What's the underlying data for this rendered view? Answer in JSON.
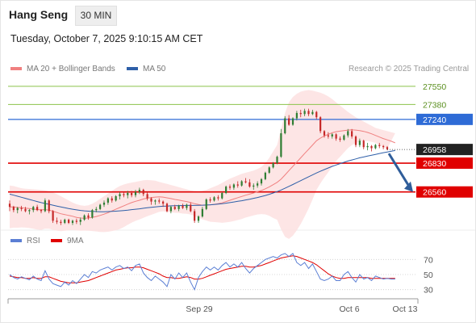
{
  "header": {
    "instrument": "Hang Seng",
    "timeframe": "30 MIN",
    "datetime": "Tuesday, October 7, 2025 9:10:15 AM CET"
  },
  "legend": {
    "ma20": {
      "label": "MA 20 + Bollinger Bands",
      "color": "#f08080"
    },
    "ma50": {
      "label": "MA 50",
      "color": "#2e5fa8"
    },
    "rsi": {
      "label": "RSI",
      "color": "#5b7fd4"
    },
    "rsi_ma": {
      "label": "9MA",
      "color": "#e00000"
    }
  },
  "copyright": "Research © 2025 Trading Central",
  "colors": {
    "up": "#2e7d32",
    "down": "#c62828",
    "resistance": "#8bc34a",
    "support": "#e00000",
    "pivot": "#2e6bd6",
    "band": "#fde2e2",
    "arrow": "#2f5d9a"
  },
  "chart_data": [
    {
      "type": "candlestick",
      "title": "Hang Seng",
      "x_ticks": [
        "Sep 29",
        "Oct 6",
        "Oct 13"
      ],
      "ylim": [
        26240,
        27640
      ],
      "current_price": 26958,
      "levels": [
        {
          "label": "27550",
          "value": 27550,
          "kind": "resistance"
        },
        {
          "label": "27380",
          "value": 27380,
          "kind": "resistance"
        },
        {
          "label": "27240",
          "value": 27240,
          "kind": "pivot"
        },
        {
          "label": "26830",
          "value": 26830,
          "kind": "support"
        },
        {
          "label": "26560",
          "value": 26560,
          "kind": "support"
        }
      ],
      "ohlc": [
        [
          26450,
          26480,
          26380,
          26420
        ],
        [
          26420,
          26430,
          26370,
          26390
        ],
        [
          26390,
          26420,
          26360,
          26410
        ],
        [
          26410,
          26430,
          26380,
          26400
        ],
        [
          26400,
          26420,
          26370,
          26380
        ],
        [
          26380,
          26400,
          26350,
          26390
        ],
        [
          26390,
          26430,
          26370,
          26420
        ],
        [
          26420,
          26440,
          26380,
          26390
        ],
        [
          26390,
          26400,
          26360,
          26380
        ],
        [
          26380,
          26500,
          26370,
          26480
        ],
        [
          26480,
          26490,
          26360,
          26380
        ],
        [
          26380,
          26390,
          26270,
          26290
        ],
        [
          26290,
          26320,
          26260,
          26280
        ],
        [
          26280,
          26300,
          26250,
          26270
        ],
        [
          26270,
          26310,
          26260,
          26300
        ],
        [
          26300,
          26310,
          26260,
          26270
        ],
        [
          26270,
          26300,
          26250,
          26290
        ],
        [
          26290,
          26310,
          26260,
          26280
        ],
        [
          26280,
          26320,
          26250,
          26300
        ],
        [
          26300,
          26350,
          26290,
          26340
        ],
        [
          26340,
          26360,
          26300,
          26320
        ],
        [
          26320,
          26400,
          26310,
          26390
        ],
        [
          26390,
          26420,
          26370,
          26400
        ],
        [
          26400,
          26450,
          26390,
          26440
        ],
        [
          26440,
          26480,
          26420,
          26460
        ],
        [
          26460,
          26510,
          26440,
          26500
        ],
        [
          26500,
          26520,
          26460,
          26480
        ],
        [
          26480,
          26530,
          26470,
          26520
        ],
        [
          26520,
          26560,
          26490,
          26540
        ],
        [
          26540,
          26560,
          26510,
          26530
        ],
        [
          26530,
          26570,
          26500,
          26550
        ],
        [
          26550,
          26570,
          26510,
          26530
        ],
        [
          26530,
          26580,
          26510,
          26560
        ],
        [
          26560,
          26600,
          26540,
          26580
        ],
        [
          26580,
          26590,
          26520,
          26540
        ],
        [
          26540,
          26560,
          26480,
          26500
        ],
        [
          26500,
          26510,
          26440,
          26470
        ],
        [
          26470,
          26490,
          26440,
          26480
        ],
        [
          26480,
          26500,
          26450,
          26470
        ],
        [
          26470,
          26480,
          26420,
          26450
        ],
        [
          26450,
          26460,
          26370,
          26380
        ],
        [
          26380,
          26430,
          26360,
          26420
        ],
        [
          26420,
          26440,
          26390,
          26400
        ],
        [
          26400,
          26440,
          26380,
          26430
        ],
        [
          26430,
          26450,
          26400,
          26410
        ],
        [
          26410,
          26450,
          26390,
          26440
        ],
        [
          26440,
          26460,
          26370,
          26380
        ],
        [
          26380,
          26400,
          26270,
          26290
        ],
        [
          26290,
          26340,
          26270,
          26330
        ],
        [
          26330,
          26420,
          26320,
          26400
        ],
        [
          26400,
          26500,
          26390,
          26490
        ],
        [
          26490,
          26510,
          26460,
          26480
        ],
        [
          26480,
          26520,
          26470,
          26510
        ],
        [
          26510,
          26530,
          26480,
          26500
        ],
        [
          26500,
          26560,
          26490,
          26550
        ],
        [
          26550,
          26620,
          26540,
          26610
        ],
        [
          26610,
          26630,
          26580,
          26600
        ],
        [
          26600,
          26640,
          26580,
          26630
        ],
        [
          26630,
          26660,
          26600,
          26620
        ],
        [
          26620,
          26670,
          26610,
          26660
        ],
        [
          26660,
          26690,
          26640,
          26650
        ],
        [
          26650,
          26680,
          26600,
          26610
        ],
        [
          26610,
          26640,
          26580,
          26620
        ],
        [
          26620,
          26660,
          26600,
          26640
        ],
        [
          26640,
          26690,
          26620,
          26680
        ],
        [
          26680,
          26750,
          26670,
          26740
        ],
        [
          26740,
          26800,
          26730,
          26790
        ],
        [
          26790,
          26840,
          26780,
          26830
        ],
        [
          26830,
          26900,
          26820,
          26890
        ],
        [
          26890,
          27150,
          26880,
          27110
        ],
        [
          27110,
          27270,
          27100,
          27250
        ],
        [
          27250,
          27280,
          27180,
          27190
        ],
        [
          27190,
          27260,
          27180,
          27250
        ],
        [
          27250,
          27320,
          27230,
          27300
        ],
        [
          27300,
          27330,
          27260,
          27290
        ],
        [
          27290,
          27340,
          27270,
          27320
        ],
        [
          27320,
          27340,
          27270,
          27290
        ],
        [
          27290,
          27330,
          27280,
          27310
        ],
        [
          27310,
          27320,
          27240,
          27260
        ],
        [
          27260,
          27270,
          27110,
          27130
        ],
        [
          27130,
          27140,
          27070,
          27090
        ],
        [
          27090,
          27120,
          27060,
          27080
        ],
        [
          27080,
          27110,
          27060,
          27100
        ],
        [
          27100,
          27110,
          27040,
          27060
        ],
        [
          27060,
          27080,
          27030,
          27050
        ],
        [
          27050,
          27100,
          27040,
          27090
        ],
        [
          27090,
          27150,
          27070,
          27130
        ],
        [
          27130,
          27150,
          27060,
          27080
        ],
        [
          27080,
          27090,
          26980,
          27000
        ],
        [
          27000,
          27060,
          26980,
          27040
        ],
        [
          27040,
          27050,
          26960,
          26980
        ],
        [
          26980,
          27020,
          26950,
          26990
        ],
        [
          26990,
          27000,
          26940,
          26970
        ],
        [
          26970,
          27010,
          26960,
          27000
        ],
        [
          27000,
          27020,
          26970,
          26990
        ],
        [
          26990,
          27000,
          26960,
          26980
        ],
        [
          26980,
          26990,
          26950,
          26960
        ]
      ],
      "ma20": [
        26420,
        26420,
        26415,
        26412,
        26408,
        26405,
        26400,
        26395,
        26392,
        26395,
        26390,
        26380,
        26368,
        26356,
        26348,
        26340,
        26332,
        26322,
        26316,
        26314,
        26316,
        26322,
        26330,
        26340,
        26352,
        26366,
        26382,
        26398,
        26414,
        26430,
        26446,
        26460,
        26472,
        26482,
        26494,
        26502,
        26508,
        26512,
        26514,
        26512,
        26505,
        26498,
        26490,
        26484,
        26476,
        26470,
        26462,
        26450,
        26442,
        26436,
        26436,
        26438,
        26444,
        26450,
        26458,
        26470,
        26482,
        26494,
        26506,
        26518,
        26530,
        26540,
        26550,
        26562,
        26574,
        26590,
        26608,
        26628,
        26650,
        26680,
        26720,
        26760,
        26800,
        26840,
        26880,
        26920,
        26960,
        27000,
        27040,
        27065,
        27085,
        27100,
        27115,
        27125,
        27130,
        27135,
        27140,
        27142,
        27140,
        27135,
        27128,
        27118,
        27105,
        27090,
        27075,
        27060,
        27048,
        27035,
        27020
      ],
      "ma50": [
        26540,
        26530,
        26520,
        26510,
        26500,
        26490,
        26480,
        26470,
        26460,
        26452,
        26444,
        26436,
        26428,
        26420,
        26412,
        26404,
        26398,
        26392,
        26387,
        26383,
        26380,
        26378,
        26376,
        26375,
        26375,
        26376,
        26378,
        26380,
        26383,
        26386,
        26390,
        26394,
        26398,
        26402,
        26407,
        26412,
        26416,
        26420,
        26423,
        26426,
        26428,
        26430,
        26431,
        26432,
        26433,
        26434,
        26434,
        26434,
        26435,
        26436,
        26438,
        26440,
        26443,
        26446,
        26450,
        26455,
        26460,
        26466,
        26472,
        26478,
        26485,
        26492,
        26500,
        26508,
        26517,
        26527,
        26538,
        26550,
        26563,
        26578,
        26595,
        26612,
        26630,
        26648,
        26666,
        26684,
        26702,
        26720,
        26738,
        26754,
        26770,
        26785,
        26800,
        26813,
        26826,
        26838,
        26850,
        26860,
        26870,
        26880,
        26888,
        26896,
        26904,
        26912,
        26920,
        26928,
        26935,
        26942,
        26948
      ],
      "bb_upper": [
        26620,
        26615,
        26605,
        26595,
        26590,
        26588,
        26585,
        26582,
        26580,
        26575,
        26565,
        26555,
        26540,
        26520,
        26500,
        26480,
        26460,
        26445,
        26435,
        26430,
        26435,
        26450,
        26470,
        26495,
        26520,
        26545,
        26570,
        26595,
        26615,
        26630,
        26640,
        26648,
        26655,
        26662,
        26670,
        26672,
        26670,
        26665,
        26655,
        26645,
        26635,
        26625,
        26615,
        26605,
        26595,
        26585,
        26575,
        26568,
        26565,
        26570,
        26580,
        26595,
        26610,
        26625,
        26645,
        26665,
        26685,
        26700,
        26715,
        26730,
        26740,
        26750,
        26760,
        26775,
        26795,
        26830,
        26880,
        26940,
        27000,
        27150,
        27300,
        27400,
        27450,
        27480,
        27500,
        27510,
        27515,
        27510,
        27500,
        27490,
        27475,
        27455,
        27430,
        27400,
        27370,
        27340,
        27310,
        27285,
        27260,
        27240,
        27220,
        27200,
        27180,
        27160,
        27150,
        27140,
        27130,
        27120,
        27110
      ],
      "bb_lower": [
        26220,
        26225,
        26225,
        26228,
        26226,
        26222,
        26215,
        26208,
        26204,
        26215,
        26215,
        26205,
        26196,
        26192,
        26196,
        26200,
        26204,
        26199,
        26197,
        26198,
        26197,
        26194,
        26190,
        26185,
        26184,
        26187,
        26194,
        26201,
        26213,
        26230,
        26252,
        26272,
        26289,
        26302,
        26318,
        26332,
        26346,
        26359,
        26373,
        26379,
        26375,
        26371,
        26365,
        26363,
        26357,
        26355,
        26349,
        26332,
        26319,
        26302,
        26292,
        26281,
        26278,
        26275,
        26271,
        26275,
        26279,
        26288,
        26297,
        26306,
        26320,
        26330,
        26340,
        26349,
        26353,
        26350,
        26336,
        26316,
        26300,
        26210,
        26140,
        26120,
        26150,
        26200,
        26260,
        26330,
        26405,
        26490,
        26580,
        26640,
        26695,
        26745,
        26800,
        26850,
        26890,
        26930,
        26970,
        26999,
        27020,
        27030,
        27036,
        27036,
        27030,
        27020,
        27000,
        26980,
        26966,
        26950,
        26930
      ],
      "forecast_arrow": {
        "from": 26920,
        "to": 26560
      }
    },
    {
      "type": "line",
      "title": "RSI",
      "y_ticks": [
        70,
        50,
        30
      ],
      "ylim": [
        20,
        80
      ],
      "rsi": [
        50,
        46,
        44,
        47,
        45,
        43,
        48,
        44,
        42,
        55,
        44,
        38,
        36,
        34,
        40,
        36,
        42,
        38,
        44,
        50,
        46,
        54,
        52,
        56,
        58,
        60,
        56,
        60,
        62,
        58,
        60,
        55,
        62,
        64,
        52,
        46,
        42,
        48,
        44,
        40,
        34,
        50,
        44,
        52,
        46,
        52,
        40,
        30,
        46,
        54,
        60,
        56,
        60,
        56,
        62,
        66,
        60,
        64,
        60,
        66,
        58,
        52,
        58,
        62,
        66,
        70,
        72,
        74,
        72,
        76,
        78,
        74,
        78,
        66,
        62,
        66,
        58,
        64,
        54,
        44,
        42,
        44,
        48,
        42,
        42,
        50,
        54,
        46,
        40,
        50,
        44,
        46,
        42,
        48,
        46,
        44,
        45,
        44,
        44
      ],
      "rsi_ma": [
        48,
        47,
        46,
        46,
        45,
        45,
        46,
        45,
        45,
        47,
        47,
        45,
        43,
        41,
        40,
        39,
        39,
        39,
        40,
        41,
        42,
        44,
        46,
        48,
        50,
        52,
        54,
        56,
        57,
        58,
        59,
        59,
        60,
        60,
        59,
        57,
        55,
        53,
        51,
        48,
        46,
        46,
        45,
        45,
        46,
        47,
        46,
        44,
        44,
        45,
        47,
        49,
        51,
        53,
        55,
        57,
        58,
        59,
        60,
        61,
        61,
        60,
        60,
        61,
        62,
        64,
        66,
        68,
        70,
        72,
        73,
        74,
        75,
        74,
        72,
        70,
        68,
        66,
        63,
        59,
        55,
        51,
        48,
        46,
        45,
        45,
        46,
        46,
        46,
        46,
        46,
        46,
        45,
        45,
        45,
        45,
        45,
        45,
        45
      ]
    }
  ]
}
